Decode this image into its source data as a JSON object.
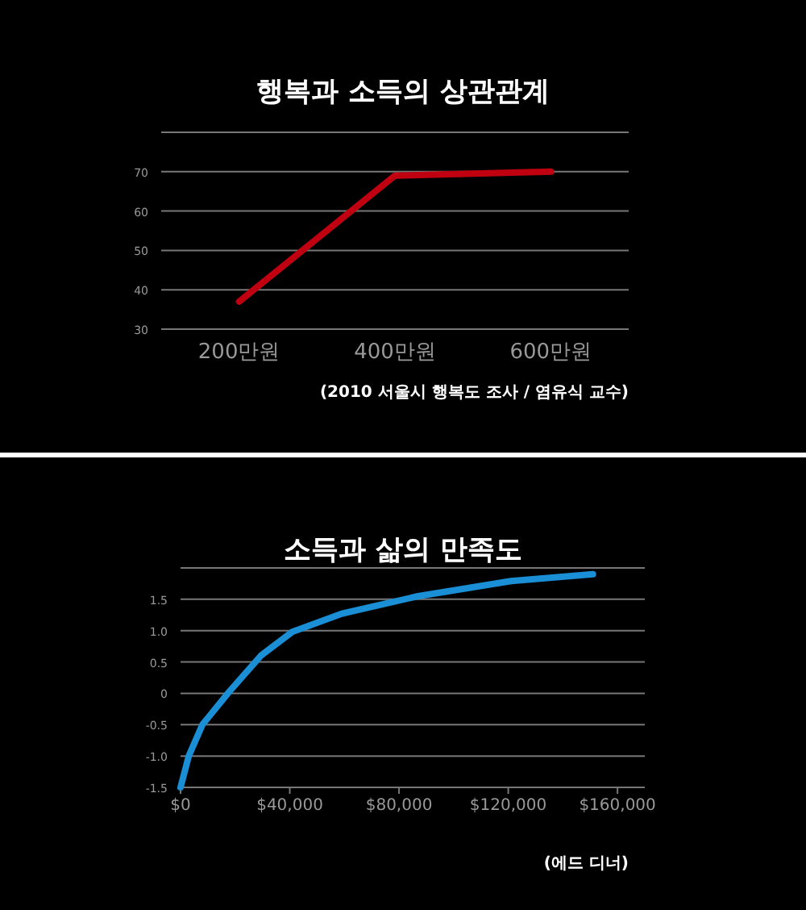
{
  "chart_data": [
    {
      "type": "line",
      "title": "행복과 소득의 상관관계",
      "categories": [
        "200만원",
        "400만원",
        "600만원"
      ],
      "values": [
        37,
        69,
        70
      ],
      "color": "#c00010",
      "ylim": [
        30,
        80
      ],
      "yticks": [
        30,
        40,
        50,
        60,
        70,
        {
          "value": 80,
          "label": null
        }
      ],
      "grid": "y",
      "annotations": [
        "(2010 서울시 행복도 조사 / 염유식 교수)"
      ]
    },
    {
      "type": "line",
      "title": "소득과 삶의 만족도",
      "x": [
        0,
        3000,
        8000,
        17900,
        29400,
        40900,
        59000,
        87000,
        121000,
        151000
      ],
      "values": [
        -1.5,
        -1,
        -0.5,
        0.03,
        0.6,
        0.98,
        1.27,
        1.55,
        1.79,
        1.9
      ],
      "color": "#1a8fd6",
      "xlim": [
        0,
        170000
      ],
      "xticks": [
        {
          "value": 0,
          "label": "$0"
        },
        {
          "value": 40000,
          "label": "$40,000"
        },
        {
          "value": 80000,
          "label": "$80,000"
        },
        {
          "value": 120000,
          "label": "$120,000"
        },
        {
          "value": 160000,
          "label": "$160,000"
        }
      ],
      "ylim": [
        -1.5,
        2
      ],
      "yticks": [
        {
          "value": -1.5,
          "label": "-1.5"
        },
        {
          "value": -1,
          "label": "-1.0"
        },
        {
          "value": -0.5,
          "label": "-0.5"
        },
        {
          "value": 0,
          "label": "0"
        },
        {
          "value": 0.5,
          "label": "0.5"
        },
        {
          "value": 1,
          "label": "1.0"
        },
        {
          "value": 1.5,
          "label": "1.5"
        },
        {
          "value": 2,
          "label": null
        }
      ],
      "grid": "y",
      "annotations": [
        "(에드 디너)"
      ]
    }
  ]
}
